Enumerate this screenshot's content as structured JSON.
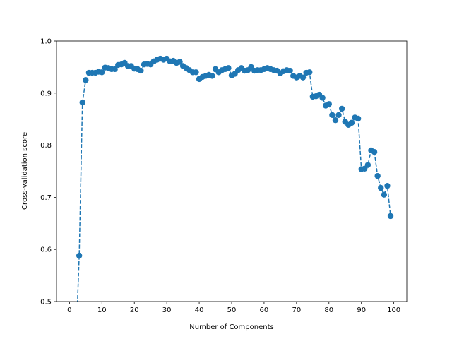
{
  "chart_data": {
    "type": "line",
    "title": "",
    "xlabel": "Number of Components",
    "ylabel": "Cross-validation score",
    "xlim": [
      -4,
      104
    ],
    "ylim": [
      0.5,
      1.0
    ],
    "xticks": [
      0,
      10,
      20,
      30,
      40,
      50,
      60,
      70,
      80,
      90,
      100
    ],
    "yticks": [
      0.5,
      0.6,
      0.7,
      0.8,
      0.9,
      1.0
    ],
    "ytick_labels": [
      "0.5",
      "0.6",
      "0.7",
      "0.8",
      "0.9",
      "1.0"
    ],
    "grid": false,
    "legend": null,
    "line_style": "dashed",
    "marker": "circle",
    "color": "#1f77b4",
    "series": [
      {
        "name": "Cross-validation score",
        "x": [
          2,
          3,
          4,
          5,
          6,
          7,
          8,
          9,
          10,
          11,
          12,
          13,
          14,
          15,
          16,
          17,
          18,
          19,
          20,
          21,
          22,
          23,
          24,
          25,
          26,
          27,
          28,
          29,
          30,
          31,
          32,
          33,
          34,
          35,
          36,
          37,
          38,
          39,
          40,
          41,
          42,
          43,
          44,
          45,
          46,
          47,
          48,
          49,
          50,
          51,
          52,
          53,
          54,
          55,
          56,
          57,
          58,
          59,
          60,
          61,
          62,
          63,
          64,
          65,
          66,
          67,
          68,
          69,
          70,
          71,
          72,
          73,
          74,
          75,
          76,
          77,
          78,
          79,
          80,
          81,
          82,
          83,
          84,
          85,
          86,
          87,
          88,
          89,
          90,
          91,
          92,
          93,
          94,
          95,
          96,
          97,
          98,
          99
        ],
        "values": [
          0.42,
          0.588,
          0.882,
          0.925,
          0.939,
          0.939,
          0.939,
          0.941,
          0.94,
          0.949,
          0.948,
          0.946,
          0.946,
          0.954,
          0.955,
          0.958,
          0.952,
          0.952,
          0.947,
          0.946,
          0.943,
          0.955,
          0.956,
          0.955,
          0.961,
          0.964,
          0.966,
          0.964,
          0.966,
          0.961,
          0.962,
          0.958,
          0.96,
          0.952,
          0.948,
          0.944,
          0.94,
          0.94,
          0.927,
          0.931,
          0.933,
          0.935,
          0.933,
          0.946,
          0.94,
          0.944,
          0.946,
          0.948,
          0.934,
          0.937,
          0.944,
          0.948,
          0.943,
          0.944,
          0.95,
          0.943,
          0.944,
          0.944,
          0.946,
          0.948,
          0.946,
          0.944,
          0.943,
          0.938,
          0.942,
          0.944,
          0.943,
          0.933,
          0.93,
          0.933,
          0.93,
          0.939,
          0.94,
          0.893,
          0.894,
          0.897,
          0.891,
          0.876,
          0.879,
          0.858,
          0.848,
          0.858,
          0.87,
          0.845,
          0.839,
          0.843,
          0.853,
          0.851,
          0.754,
          0.755,
          0.762,
          0.79,
          0.787,
          0.741,
          0.718,
          0.705,
          0.722,
          0.664
        ]
      }
    ]
  }
}
